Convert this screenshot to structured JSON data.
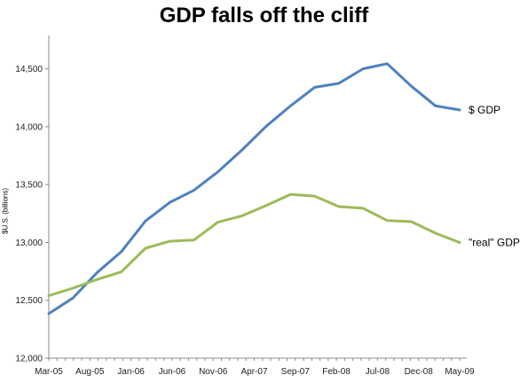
{
  "chart_data": {
    "type": "line",
    "title": "GDP falls off the cliff",
    "ylabel": "$U.S. (billions)",
    "xlabel": "",
    "categories": [
      "Mar-05",
      "",
      "",
      "",
      "",
      "Aug-05",
      "",
      "",
      "",
      "",
      "Jan-06",
      "",
      "",
      "",
      "",
      "Jun-06",
      "",
      "",
      "",
      "",
      "Nov-06",
      "",
      "",
      "",
      "",
      "Apr-07",
      "",
      "",
      "",
      "",
      "Sep-07",
      "",
      "",
      "",
      "",
      "Feb-08",
      "",
      "",
      "",
      "",
      "Jul-08",
      "",
      "",
      "",
      "",
      "Dec-08",
      "",
      "",
      "",
      "",
      "May-09"
    ],
    "x_tick_labels": [
      "Mar-05",
      "Aug-05",
      "Jan-06",
      "Jun-06",
      "Nov-06",
      "Apr-07",
      "Sep-07",
      "Feb-08",
      "Jul-08",
      "Dec-08",
      "May-09"
    ],
    "ylim": [
      12000,
      14750
    ],
    "y_ticks": [
      12000,
      12500,
      13000,
      13500,
      14000,
      14500
    ],
    "y_tick_labels": [
      "12,000",
      "12,500",
      "13,000",
      "13,500",
      "14,000",
      "14,500"
    ],
    "grid": false,
    "series": [
      {
        "name": "$ GDP",
        "color": "#4f81bd",
        "points": [
          [
            0,
            12385
          ],
          [
            1,
            12520
          ],
          [
            2,
            12740
          ],
          [
            3,
            12920
          ],
          [
            4,
            13185
          ],
          [
            5,
            13345
          ],
          [
            6,
            13450
          ],
          [
            7,
            13610
          ],
          [
            8,
            13800
          ],
          [
            9,
            14005
          ],
          [
            10,
            14180
          ],
          [
            11,
            14340
          ],
          [
            12,
            14375
          ],
          [
            13,
            14500
          ],
          [
            14,
            14545
          ],
          [
            15,
            14350
          ],
          [
            16,
            14180
          ],
          [
            17,
            14145
          ]
        ]
      },
      {
        "name": "\"real\" GDP",
        "color": "#9bbb59",
        "points": [
          [
            0,
            12540
          ],
          [
            1,
            12605
          ],
          [
            2,
            12680
          ],
          [
            3,
            12745
          ],
          [
            4,
            12950
          ],
          [
            5,
            13010
          ],
          [
            6,
            13020
          ],
          [
            7,
            13175
          ],
          [
            8,
            13230
          ],
          [
            9,
            13320
          ],
          [
            10,
            13415
          ],
          [
            11,
            13400
          ],
          [
            12,
            13310
          ],
          [
            13,
            13295
          ],
          [
            14,
            13190
          ],
          [
            15,
            13180
          ],
          [
            16,
            13080
          ],
          [
            17,
            13000
          ]
        ]
      }
    ]
  }
}
